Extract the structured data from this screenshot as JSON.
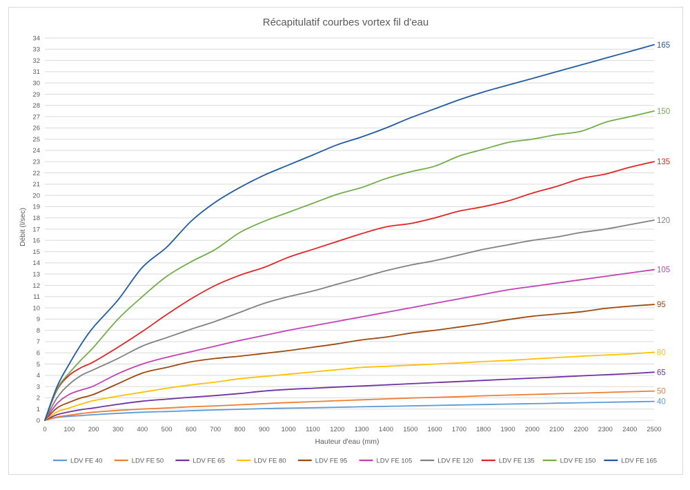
{
  "chart_data": {
    "type": "line",
    "title": "Récapitulatif courbes vortex fil d'eau",
    "xlabel": "Hauteur d'eau (mm)",
    "ylabel": "Débit (l/sec)",
    "xlim": [
      0,
      2500
    ],
    "ylim": [
      0,
      34
    ],
    "xticks": [
      0,
      100,
      200,
      300,
      400,
      500,
      600,
      700,
      800,
      900,
      1000,
      1100,
      1200,
      1300,
      1400,
      1500,
      1600,
      1700,
      1800,
      1900,
      2000,
      2100,
      2200,
      2300,
      2400,
      2500
    ],
    "yticks": [
      0,
      1,
      2,
      3,
      4,
      5,
      6,
      7,
      8,
      9,
      10,
      11,
      12,
      13,
      14,
      15,
      16,
      17,
      18,
      19,
      20,
      21,
      22,
      23,
      24,
      25,
      26,
      27,
      28,
      29,
      30,
      31,
      32,
      33,
      34
    ],
    "grid": "horizontal",
    "legend_position": "bottom",
    "x": [
      0,
      50,
      100,
      150,
      200,
      300,
      400,
      500,
      600,
      700,
      800,
      900,
      1000,
      1100,
      1200,
      1300,
      1400,
      1500,
      1600,
      1700,
      1800,
      1900,
      2000,
      2100,
      2200,
      2300,
      2400,
      2500
    ],
    "series": [
      {
        "name": "LDV FE 40",
        "end_label": "40",
        "color": "#5b9bd5",
        "values": [
          0,
          0.25,
          0.35,
          0.42,
          0.5,
          0.62,
          0.72,
          0.78,
          0.85,
          0.92,
          0.98,
          1.04,
          1.08,
          1.12,
          1.16,
          1.2,
          1.24,
          1.28,
          1.32,
          1.36,
          1.4,
          1.44,
          1.48,
          1.52,
          1.56,
          1.6,
          1.64,
          1.68
        ]
      },
      {
        "name": "LDV FE 50",
        "end_label": "50",
        "color": "#ed7d31",
        "values": [
          0,
          0.3,
          0.45,
          0.6,
          0.72,
          0.88,
          1.0,
          1.1,
          1.2,
          1.28,
          1.38,
          1.48,
          1.58,
          1.66,
          1.74,
          1.82,
          1.9,
          1.98,
          2.04,
          2.1,
          2.18,
          2.24,
          2.3,
          2.36,
          2.42,
          2.48,
          2.54,
          2.6
        ]
      },
      {
        "name": "LDV FE 65",
        "end_label": "65",
        "color": "#7030a0",
        "values": [
          0,
          0.5,
          0.75,
          0.95,
          1.1,
          1.42,
          1.7,
          1.88,
          2.05,
          2.2,
          2.38,
          2.6,
          2.75,
          2.85,
          2.96,
          3.05,
          3.15,
          3.25,
          3.35,
          3.45,
          3.55,
          3.65,
          3.75,
          3.85,
          3.95,
          4.05,
          4.15,
          4.28
        ]
      },
      {
        "name": "LDV FE 80",
        "end_label": "80",
        "color": "#ffc000",
        "values": [
          0,
          0.75,
          1.1,
          1.45,
          1.75,
          2.15,
          2.5,
          2.85,
          3.15,
          3.4,
          3.7,
          3.9,
          4.1,
          4.3,
          4.5,
          4.7,
          4.8,
          4.9,
          5.0,
          5.1,
          5.22,
          5.32,
          5.45,
          5.58,
          5.7,
          5.8,
          5.9,
          6.05
        ]
      },
      {
        "name": "LDV FE 95",
        "end_label": "95",
        "color": "#9e480e",
        "values": [
          0,
          1.1,
          1.6,
          2.0,
          2.3,
          3.25,
          4.2,
          4.7,
          5.2,
          5.5,
          5.7,
          5.95,
          6.2,
          6.5,
          6.8,
          7.15,
          7.4,
          7.75,
          8.0,
          8.3,
          8.6,
          8.95,
          9.25,
          9.45,
          9.65,
          9.95,
          10.15,
          10.3
        ]
      },
      {
        "name": "LDV FE 105",
        "end_label": "105",
        "color": "#c33fb5",
        "values": [
          0,
          1.5,
          2.3,
          2.7,
          3.05,
          4.15,
          5.0,
          5.6,
          6.1,
          6.6,
          7.1,
          7.55,
          8.0,
          8.4,
          8.8,
          9.2,
          9.6,
          10.0,
          10.4,
          10.8,
          11.2,
          11.6,
          11.9,
          12.2,
          12.5,
          12.8,
          13.1,
          13.4
        ]
      },
      {
        "name": "LDV FE 120",
        "end_label": "120",
        "color": "#808080",
        "values": [
          0,
          2.0,
          3.2,
          4.0,
          4.5,
          5.5,
          6.6,
          7.35,
          8.1,
          8.8,
          9.6,
          10.4,
          11.0,
          11.5,
          12.1,
          12.7,
          13.3,
          13.8,
          14.2,
          14.7,
          15.2,
          15.6,
          16.0,
          16.3,
          16.7,
          17.0,
          17.4,
          17.8
        ]
      },
      {
        "name": "LDV FE 135",
        "end_label": "135",
        "color": "#e32222",
        "values": [
          0,
          2.7,
          4.0,
          4.7,
          5.2,
          6.5,
          7.9,
          9.4,
          10.8,
          12.0,
          12.9,
          13.6,
          14.5,
          15.2,
          15.9,
          16.6,
          17.2,
          17.5,
          18.0,
          18.6,
          19.0,
          19.5,
          20.2,
          20.8,
          21.5,
          21.9,
          22.5,
          23.0
        ]
      },
      {
        "name": "LDV FE 150",
        "end_label": "150",
        "color": "#70ad47",
        "values": [
          0,
          2.8,
          4.2,
          5.4,
          6.5,
          9.0,
          11.0,
          12.8,
          14.1,
          15.2,
          16.7,
          17.7,
          18.5,
          19.3,
          20.1,
          20.7,
          21.5,
          22.1,
          22.6,
          23.5,
          24.1,
          24.7,
          25.0,
          25.4,
          25.7,
          26.5,
          27.0,
          27.5
        ]
      },
      {
        "name": "LDV FE 165",
        "end_label": "165",
        "color": "#1f5aa0",
        "values": [
          0,
          3.0,
          5.0,
          6.8,
          8.3,
          10.7,
          13.6,
          15.4,
          17.7,
          19.4,
          20.7,
          21.8,
          22.7,
          23.6,
          24.5,
          25.2,
          26.0,
          26.9,
          27.7,
          28.5,
          29.2,
          29.8,
          30.4,
          31.0,
          31.6,
          32.2,
          32.8,
          33.4
        ]
      }
    ]
  }
}
